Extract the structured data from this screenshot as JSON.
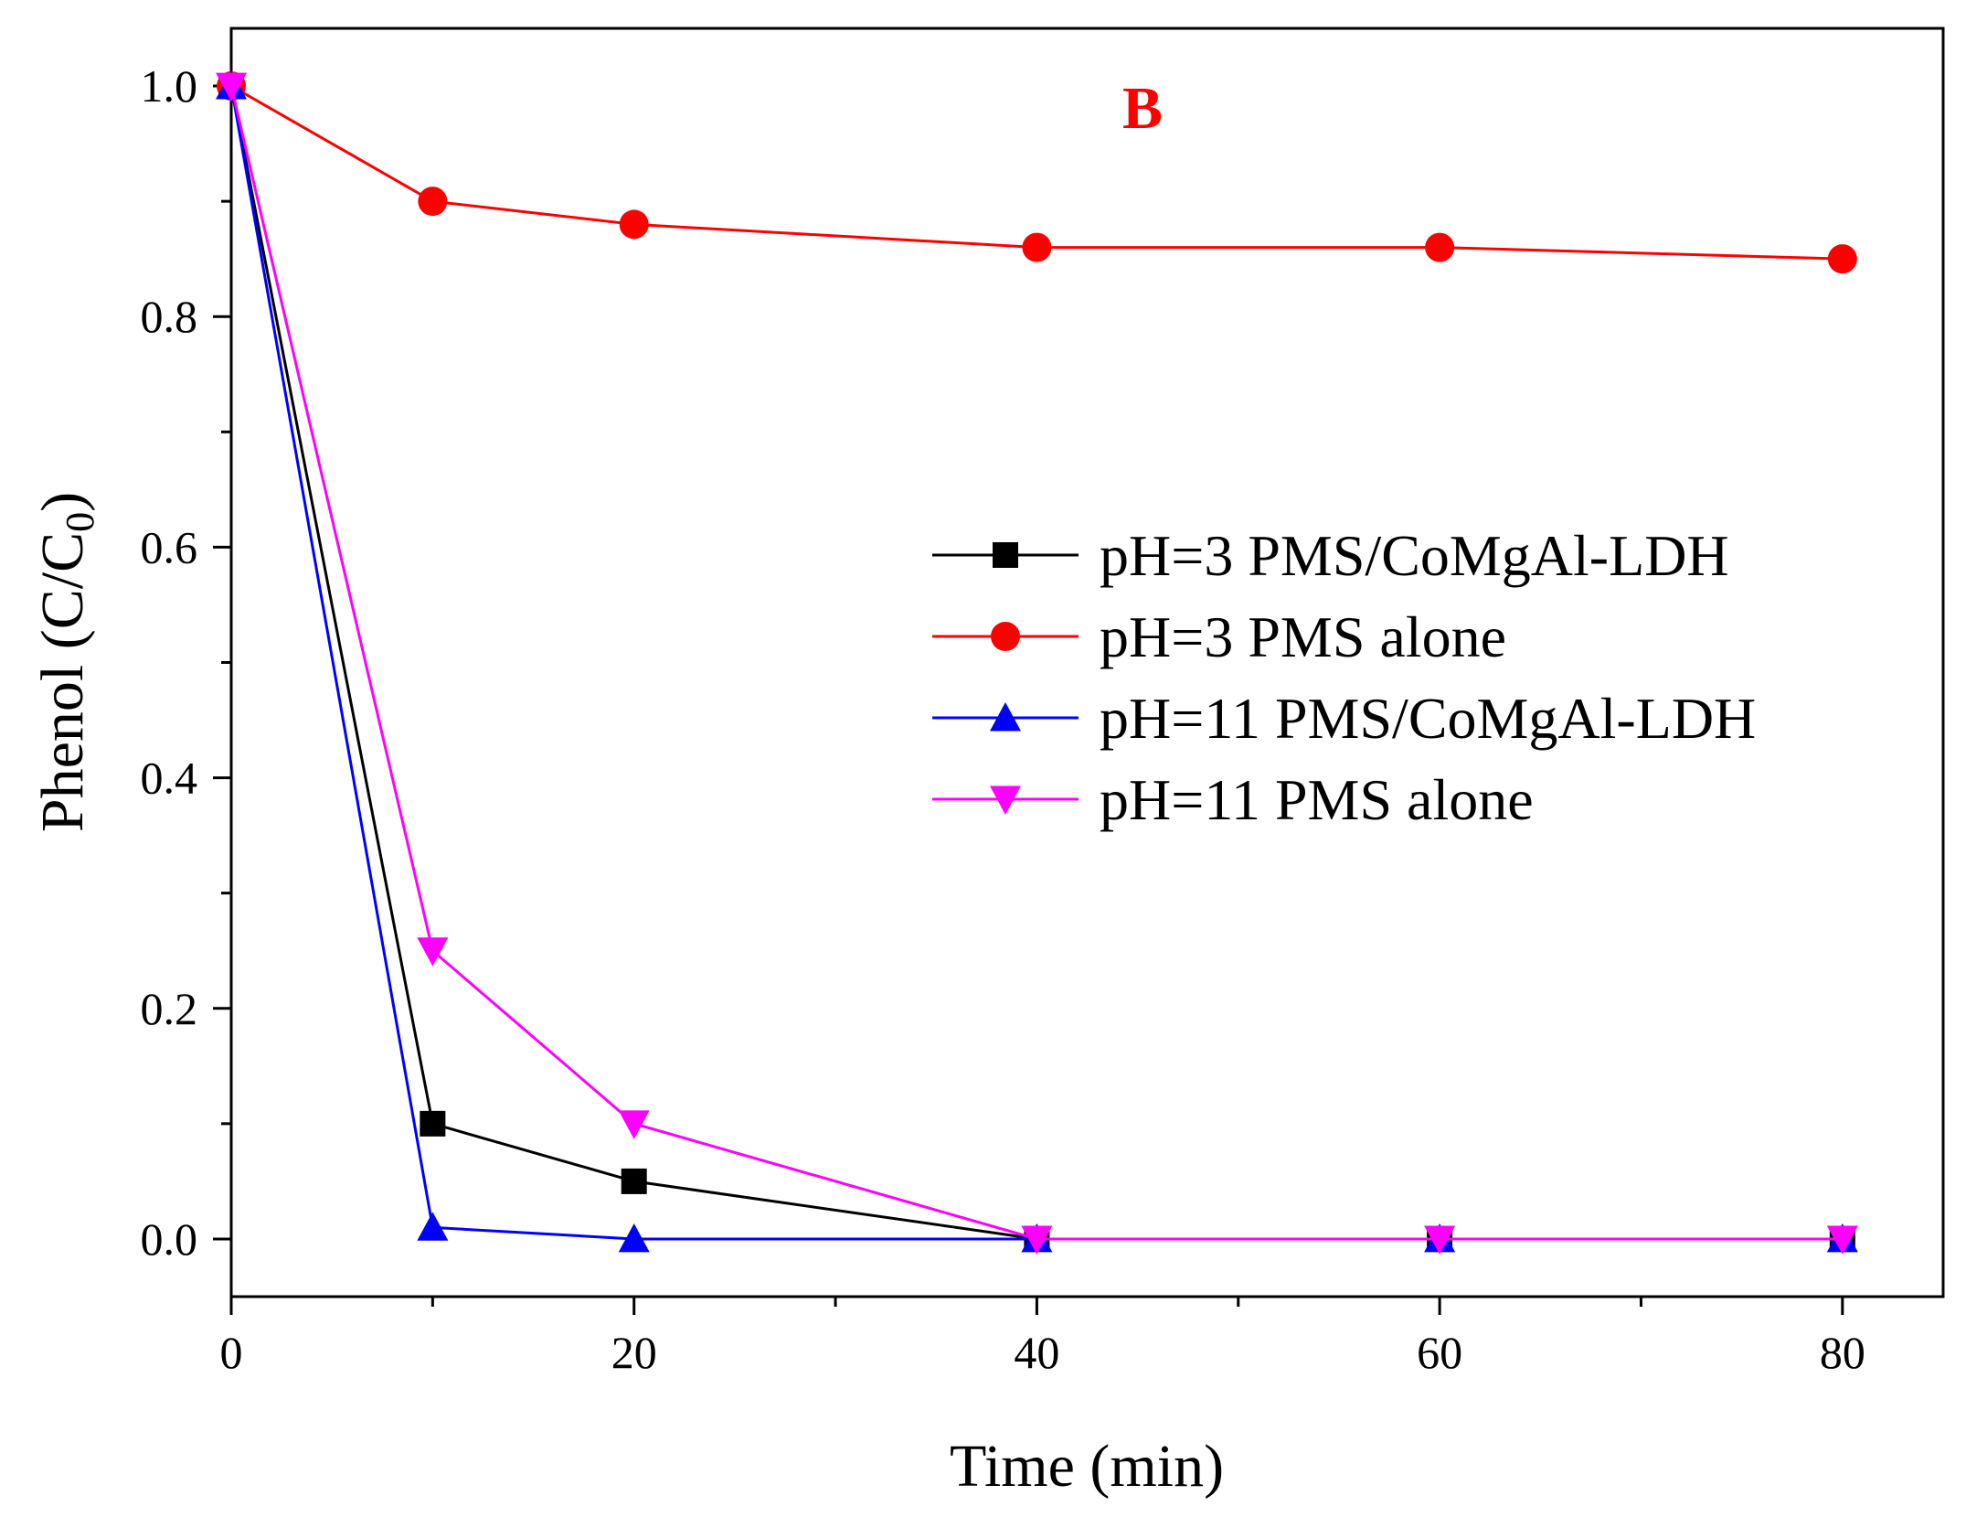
{
  "chart_data": {
    "type": "line",
    "panel_label": "B",
    "panel_label_color": "#ff0000",
    "xlabel": "Time (min)",
    "ylabel_main": "Phenol (C/C",
    "ylabel_sub": "0",
    "ylabel_close": ")",
    "xlim": [
      0,
      85
    ],
    "ylim": [
      -0.05,
      1.05
    ],
    "x_ticks": [
      0,
      20,
      40,
      60,
      80
    ],
    "x_tick_labels": [
      "0",
      "20",
      "40",
      "60",
      "80"
    ],
    "x_minor_ticks": [
      10,
      30,
      50,
      70
    ],
    "y_ticks": [
      0.0,
      0.2,
      0.4,
      0.6,
      0.8,
      1.0
    ],
    "y_tick_labels": [
      "0.0",
      "0.2",
      "0.4",
      "0.6",
      "0.8",
      "1.0"
    ],
    "y_minor_ticks": [
      0.1,
      0.3,
      0.5,
      0.7,
      0.9
    ],
    "x": [
      0,
      10,
      20,
      40,
      60,
      80
    ],
    "series": [
      {
        "name": "pH=3 PMS/CoMgAl-LDH",
        "color": "#000000",
        "marker": "square",
        "values": [
          1.0,
          0.1,
          0.05,
          0.0,
          0.0,
          0.0
        ]
      },
      {
        "name": "pH=3 PMS alone",
        "color": "#ff0000",
        "marker": "circle",
        "values": [
          1.0,
          0.9,
          0.88,
          0.86,
          0.86,
          0.85
        ]
      },
      {
        "name": "pH=11 PMS/CoMgAl-LDH",
        "color": "#0000ff",
        "marker": "triangle-up",
        "values": [
          1.0,
          0.01,
          0.0,
          0.0,
          0.0,
          0.0
        ]
      },
      {
        "name": "pH=11 PMS alone",
        "color": "#ff00ff",
        "marker": "triangle-down",
        "values": [
          1.0,
          0.25,
          0.1,
          0.0,
          0.0,
          0.0
        ]
      }
    ],
    "legend_position": "center-right"
  }
}
